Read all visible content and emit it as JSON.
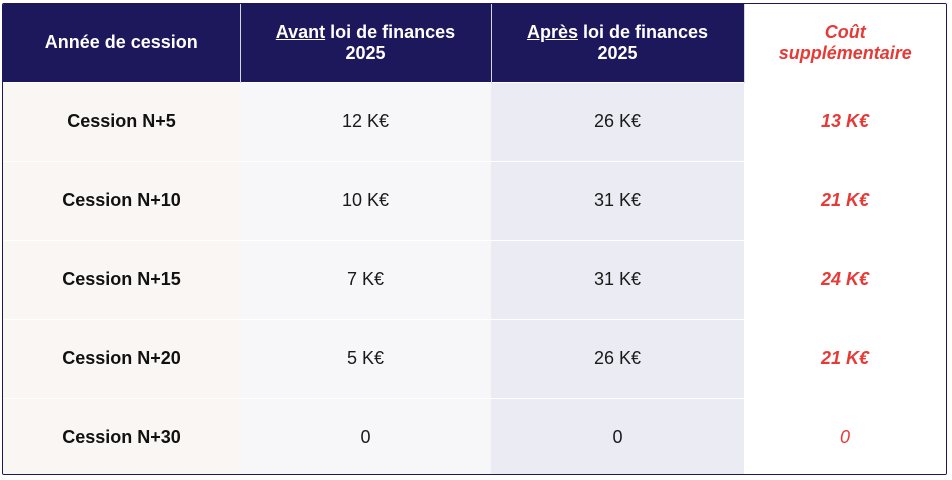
{
  "header": {
    "year_label": "Année de cession",
    "before_emph": "Avant",
    "before_rest": " loi de finances",
    "before_year": "2025",
    "after_emph": "Après",
    "after_rest": " loi de finances",
    "after_year": "2025",
    "cost_line1": "Coût",
    "cost_line2": "supplémentaire"
  },
  "rows": [
    {
      "year": "Cession N+5",
      "before": "12 K€",
      "after": "26 K€",
      "cost": "13 K€"
    },
    {
      "year": "Cession N+10",
      "before": "10 K€",
      "after": "31 K€",
      "cost": "21 K€"
    },
    {
      "year": "Cession N+15",
      "before": "7 K€",
      "after": "31 K€",
      "cost": "24 K€"
    },
    {
      "year": "Cession N+20",
      "before": "5 K€",
      "after": "26 K€",
      "cost": "21 K€"
    },
    {
      "year": "Cession N+30",
      "before": "0",
      "after": "0",
      "cost": "0"
    }
  ],
  "colors": {
    "header_bg": "#1d175c",
    "cost_red": "#e63a36"
  }
}
